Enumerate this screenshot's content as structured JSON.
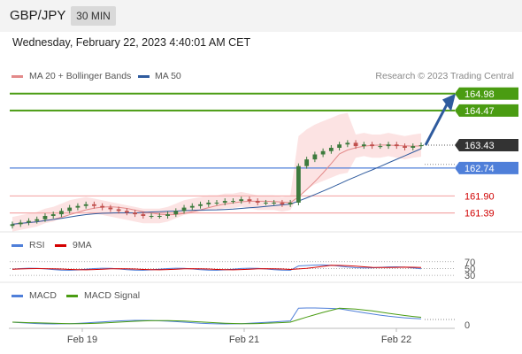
{
  "header": {
    "symbol": "GBP/JPY",
    "timeframe": "30 MIN"
  },
  "timestamp": "Wednesday, February 22, 2023 4:40:01 AM CET",
  "legend": {
    "ma20": "MA 20 + Bollinger Bands",
    "ma50": "MA 50"
  },
  "credit": "Research © 2023 Trading Central",
  "rsi_legend": {
    "rsi": "RSI",
    "signal": "9MA"
  },
  "macd_legend": {
    "macd": "MACD",
    "signal": "MACD Signal"
  },
  "colors": {
    "green": "#4a9c12",
    "blue": "#4f7fd9",
    "red": "#e38a8a",
    "candle_up": "#3d7a3d",
    "candle_down": "#c0504d",
    "arrow": "#2f5b9e",
    "current": "#333333"
  },
  "chart_data": {
    "type": "candlestick",
    "x_ticks": [
      "Feb 19",
      "Feb 21",
      "Feb 22"
    ],
    "price_levels": [
      {
        "label": "164.98",
        "value": 164.98,
        "kind": "target"
      },
      {
        "label": "164.47",
        "value": 164.47,
        "kind": "target"
      },
      {
        "label": "163.43",
        "value": 163.43,
        "kind": "current"
      },
      {
        "label": "162.74",
        "value": 162.74,
        "kind": "pivot"
      },
      {
        "label": "161.90",
        "value": 161.9,
        "kind": "support"
      },
      {
        "label": "161.39",
        "value": 161.39,
        "kind": "support"
      }
    ],
    "price_range": [
      160.9,
      165.4
    ],
    "close_approx": [
      161.05,
      161.1,
      161.15,
      161.2,
      161.3,
      161.35,
      161.45,
      161.55,
      161.6,
      161.65,
      161.6,
      161.55,
      161.5,
      161.45,
      161.4,
      161.35,
      161.3,
      161.3,
      161.3,
      161.35,
      161.45,
      161.55,
      161.6,
      161.65,
      161.7,
      161.7,
      161.75,
      161.75,
      161.8,
      161.75,
      161.7,
      161.7,
      161.7,
      161.65,
      161.7,
      162.8,
      163.0,
      163.15,
      163.25,
      163.35,
      163.45,
      163.5,
      163.4,
      163.45,
      163.4,
      163.4,
      163.45,
      163.4,
      163.35,
      163.4,
      163.43
    ],
    "rsi": {
      "levels": [
        70,
        50,
        30
      ]
    },
    "macd": {
      "zero_label": "0"
    }
  }
}
